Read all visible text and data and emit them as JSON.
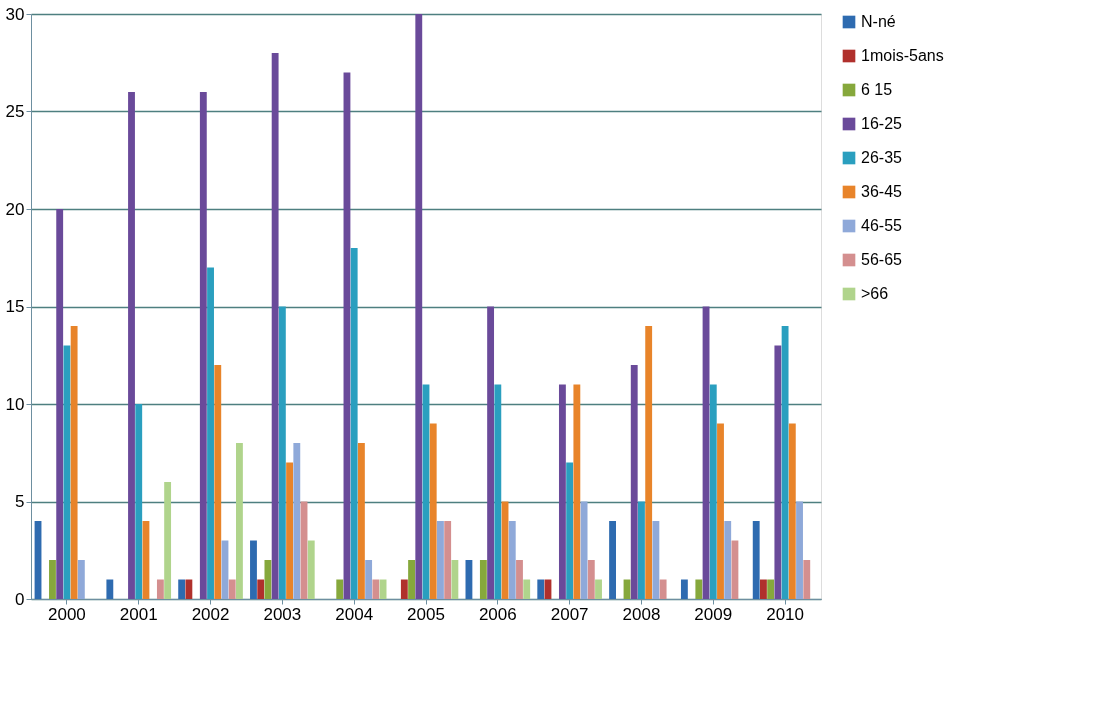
{
  "chart_data": {
    "type": "bar",
    "categories": [
      "2000",
      "2001",
      "2002",
      "2003",
      "2004",
      "2005",
      "2006",
      "2007",
      "2008",
      "2009",
      "2010"
    ],
    "series": [
      {
        "name": "N-né",
        "color": "#2e6bb0",
        "values": [
          4,
          1,
          1,
          3,
          0,
          0,
          2,
          1,
          4,
          1,
          4
        ]
      },
      {
        "name": "1mois-5ans",
        "color": "#b0302c",
        "values": [
          0,
          0,
          1,
          1,
          0,
          1,
          0,
          1,
          0,
          0,
          1
        ]
      },
      {
        "name": "6  15",
        "color": "#86a83c",
        "values": [
          2,
          0,
          0,
          2,
          1,
          2,
          2,
          0,
          1,
          1,
          1
        ]
      },
      {
        "name": "16-25",
        "color": "#6a4a9a",
        "values": [
          20,
          26,
          26,
          28,
          27,
          30,
          15,
          11,
          12,
          15,
          13
        ]
      },
      {
        "name": "26-35",
        "color": "#2a9fbf",
        "values": [
          13,
          10,
          17,
          15,
          18,
          11,
          11,
          7,
          5,
          11,
          14
        ]
      },
      {
        "name": "36-45",
        "color": "#e8842a",
        "values": [
          14,
          4,
          12,
          7,
          8,
          9,
          5,
          11,
          14,
          9,
          9
        ]
      },
      {
        "name": "46-55",
        "color": "#8fa9d9",
        "values": [
          2,
          0,
          3,
          8,
          2,
          4,
          4,
          5,
          4,
          4,
          5
        ]
      },
      {
        "name": "56-65",
        "color": "#d48f8f",
        "values": [
          0,
          1,
          1,
          5,
          1,
          4,
          2,
          2,
          1,
          3,
          2
        ]
      },
      {
        "name": ">66",
        "color": "#b0d48c",
        "values": [
          0,
          6,
          8,
          3,
          1,
          2,
          1,
          1,
          0,
          0,
          0
        ]
      }
    ],
    "ylim": [
      0,
      30
    ],
    "yticks": [
      0,
      5,
      10,
      15,
      20,
      25,
      30
    ],
    "grid": "y",
    "legend": "right"
  }
}
